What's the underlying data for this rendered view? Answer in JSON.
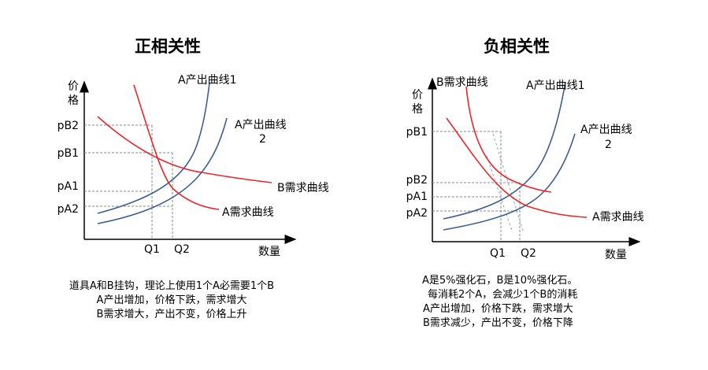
{
  "left": {
    "title": "正相关性",
    "y_axis_label": [
      "价",
      "格"
    ],
    "x_axis_label": "数量",
    "price_ticks": [
      "pB2",
      "pB1",
      "pA1",
      "pA2"
    ],
    "qty_ticks": [
      "Q1",
      "Q2"
    ],
    "curves": {
      "supply1": "A产出曲线1",
      "supply2_line1": "A产出曲线",
      "supply2_line2": "2",
      "demand_b": "B需求曲线",
      "demand_a": "A需求曲线"
    },
    "notes": [
      "道具A和B挂钩，理论上使用1个A必需要1个B",
      "A产出增加，价格下跌，需求增大",
      "B需求增大，产出不变，价格上升"
    ]
  },
  "right": {
    "title": "负相关性",
    "y_axis_label": [
      "价",
      "格"
    ],
    "x_axis_label": "数量",
    "price_ticks": [
      "pB1",
      "pB2",
      "pA1",
      "pA2"
    ],
    "qty_ticks": [
      "Q1",
      "Q2"
    ],
    "curves": {
      "demand_b": "B需求曲线",
      "supply1": "A产出曲线1",
      "supply2_line1": "A产出曲线",
      "supply2_line2": "2",
      "demand_a": "A需求曲线"
    },
    "notes": [
      "A是5%强化石，B是10%强化石。",
      "每消耗2个A，会减少1个B的消耗",
      "A产出增加，价格下跌，需求增大",
      "B需求减少，产出不变，价格下降"
    ]
  },
  "colors": {
    "supply": "#3f5e96",
    "demand": "#e8282a",
    "axis": "#000000",
    "guide": "#8a8a8a"
  }
}
